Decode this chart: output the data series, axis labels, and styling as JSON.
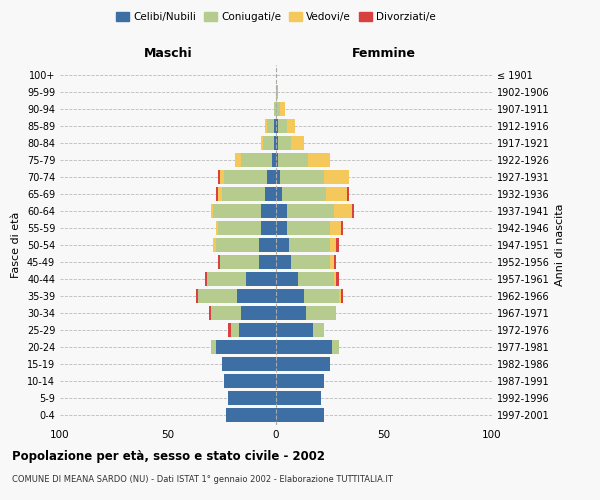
{
  "age_groups": [
    "0-4",
    "5-9",
    "10-14",
    "15-19",
    "20-24",
    "25-29",
    "30-34",
    "35-39",
    "40-44",
    "45-49",
    "50-54",
    "55-59",
    "60-64",
    "65-69",
    "70-74",
    "75-79",
    "80-84",
    "85-89",
    "90-94",
    "95-99",
    "100+"
  ],
  "birth_years": [
    "1997-2001",
    "1992-1996",
    "1987-1991",
    "1982-1986",
    "1977-1981",
    "1972-1976",
    "1967-1971",
    "1962-1966",
    "1957-1961",
    "1952-1956",
    "1947-1951",
    "1942-1946",
    "1937-1941",
    "1932-1936",
    "1927-1931",
    "1922-1926",
    "1917-1921",
    "1912-1916",
    "1907-1911",
    "1902-1906",
    "≤ 1901"
  ],
  "colors": {
    "celibe": "#3d6fa5",
    "coniugato": "#b5cc8e",
    "vedovo": "#f5c85c",
    "divorziato": "#d94040"
  },
  "maschi": {
    "celibe": [
      23,
      22,
      24,
      25,
      28,
      17,
      16,
      18,
      14,
      8,
      8,
      7,
      7,
      5,
      4,
      2,
      1,
      1,
      0,
      0,
      0
    ],
    "coniugato": [
      0,
      0,
      0,
      0,
      2,
      4,
      14,
      18,
      18,
      18,
      20,
      20,
      22,
      20,
      20,
      14,
      5,
      3,
      1,
      0,
      0
    ],
    "vedovo": [
      0,
      0,
      0,
      0,
      0,
      0,
      0,
      0,
      0,
      0,
      1,
      1,
      1,
      2,
      2,
      3,
      1,
      1,
      0,
      0,
      0
    ],
    "divorziato": [
      0,
      0,
      0,
      0,
      0,
      1,
      1,
      1,
      1,
      1,
      0,
      0,
      0,
      1,
      1,
      0,
      0,
      0,
      0,
      0,
      0
    ]
  },
  "femmine": {
    "celibe": [
      22,
      21,
      22,
      25,
      26,
      17,
      14,
      13,
      10,
      7,
      6,
      5,
      5,
      3,
      2,
      1,
      1,
      1,
      0,
      0,
      0
    ],
    "coniugato": [
      0,
      0,
      0,
      0,
      3,
      5,
      14,
      16,
      17,
      18,
      19,
      20,
      22,
      20,
      20,
      14,
      6,
      4,
      2,
      1,
      0
    ],
    "vedovo": [
      0,
      0,
      0,
      0,
      0,
      0,
      0,
      1,
      1,
      2,
      3,
      5,
      8,
      10,
      12,
      10,
      6,
      4,
      2,
      0,
      0
    ],
    "divorziato": [
      0,
      0,
      0,
      0,
      0,
      0,
      0,
      1,
      1,
      1,
      1,
      1,
      1,
      1,
      0,
      0,
      0,
      0,
      0,
      0,
      0
    ]
  },
  "xlim": [
    -100,
    100
  ],
  "xticks": [
    -100,
    -50,
    0,
    50,
    100
  ],
  "xticklabels": [
    "100",
    "50",
    "0",
    "50",
    "100"
  ],
  "title": "Popolazione per età, sesso e stato civile - 2002",
  "subtitle": "COMUNE DI MEANA SARDO (NU) - Dati ISTAT 1° gennaio 2002 - Elaborazione TUTTITALIA.IT",
  "ylabel_left": "Fasce di età",
  "ylabel_right": "Anni di nascita",
  "label_maschi": "Maschi",
  "label_femmine": "Femmine",
  "legend_labels": [
    "Celibi/Nubili",
    "Coniugati/e",
    "Vedovi/e",
    "Divorziati/e"
  ],
  "bg_color": "#f8f8f8",
  "bar_height": 0.82
}
